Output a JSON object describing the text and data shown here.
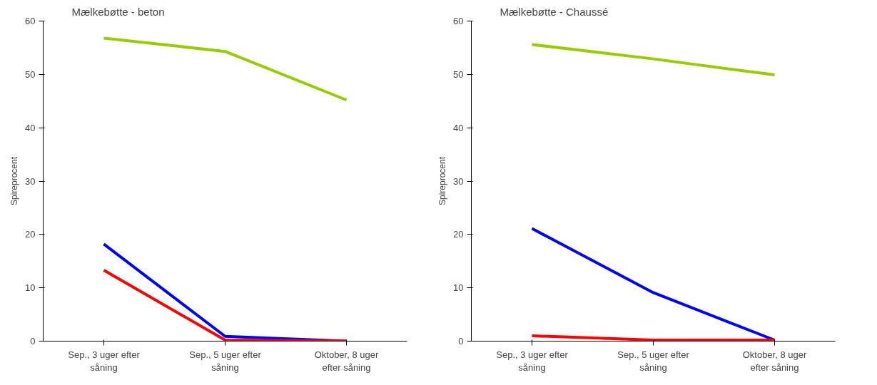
{
  "chart_data": [
    {
      "type": "line",
      "title": "Mælkebøtte - beton",
      "ylabel": "Spireprocent",
      "categories": [
        "Sep., 3 uger efter såning",
        "Sep., 5 uger efter såning",
        "Oktober, 8 uger efter såning"
      ],
      "series": [
        {
          "color": "#99cc00",
          "values": [
            56.8,
            54.3,
            45.2
          ]
        },
        {
          "color": "#0000ff",
          "values": [
            18.2,
            0.9,
            0
          ]
        },
        {
          "color": "#ff0000",
          "values": [
            13.3,
            0.2,
            0
          ]
        }
      ],
      "ylim": [
        0,
        60
      ],
      "yticks": [
        0,
        10,
        20,
        30,
        40,
        50,
        60
      ],
      "grid": false,
      "marker": "none",
      "line_style": "solid"
    },
    {
      "type": "line",
      "title": "Mælkebøtte - Chaussé",
      "ylabel": "Spireprocent",
      "categories": [
        "Sep., 3 uger efter såning",
        "Sep., 5 uger efter såning",
        "Oktober, 8 uger efter såning"
      ],
      "series": [
        {
          "color": "#99cc00",
          "values": [
            55.6,
            52.9,
            49.9
          ]
        },
        {
          "color": "#0000ff",
          "values": [
            21.1,
            9.1,
            0.2
          ]
        },
        {
          "color": "#ff0000",
          "values": [
            1.0,
            0.2,
            0.2
          ]
        }
      ],
      "ylim": [
        0,
        60
      ],
      "yticks": [
        0,
        10,
        20,
        30,
        40,
        50,
        60
      ],
      "grid": false,
      "marker": "none",
      "line_style": "solid"
    }
  ]
}
